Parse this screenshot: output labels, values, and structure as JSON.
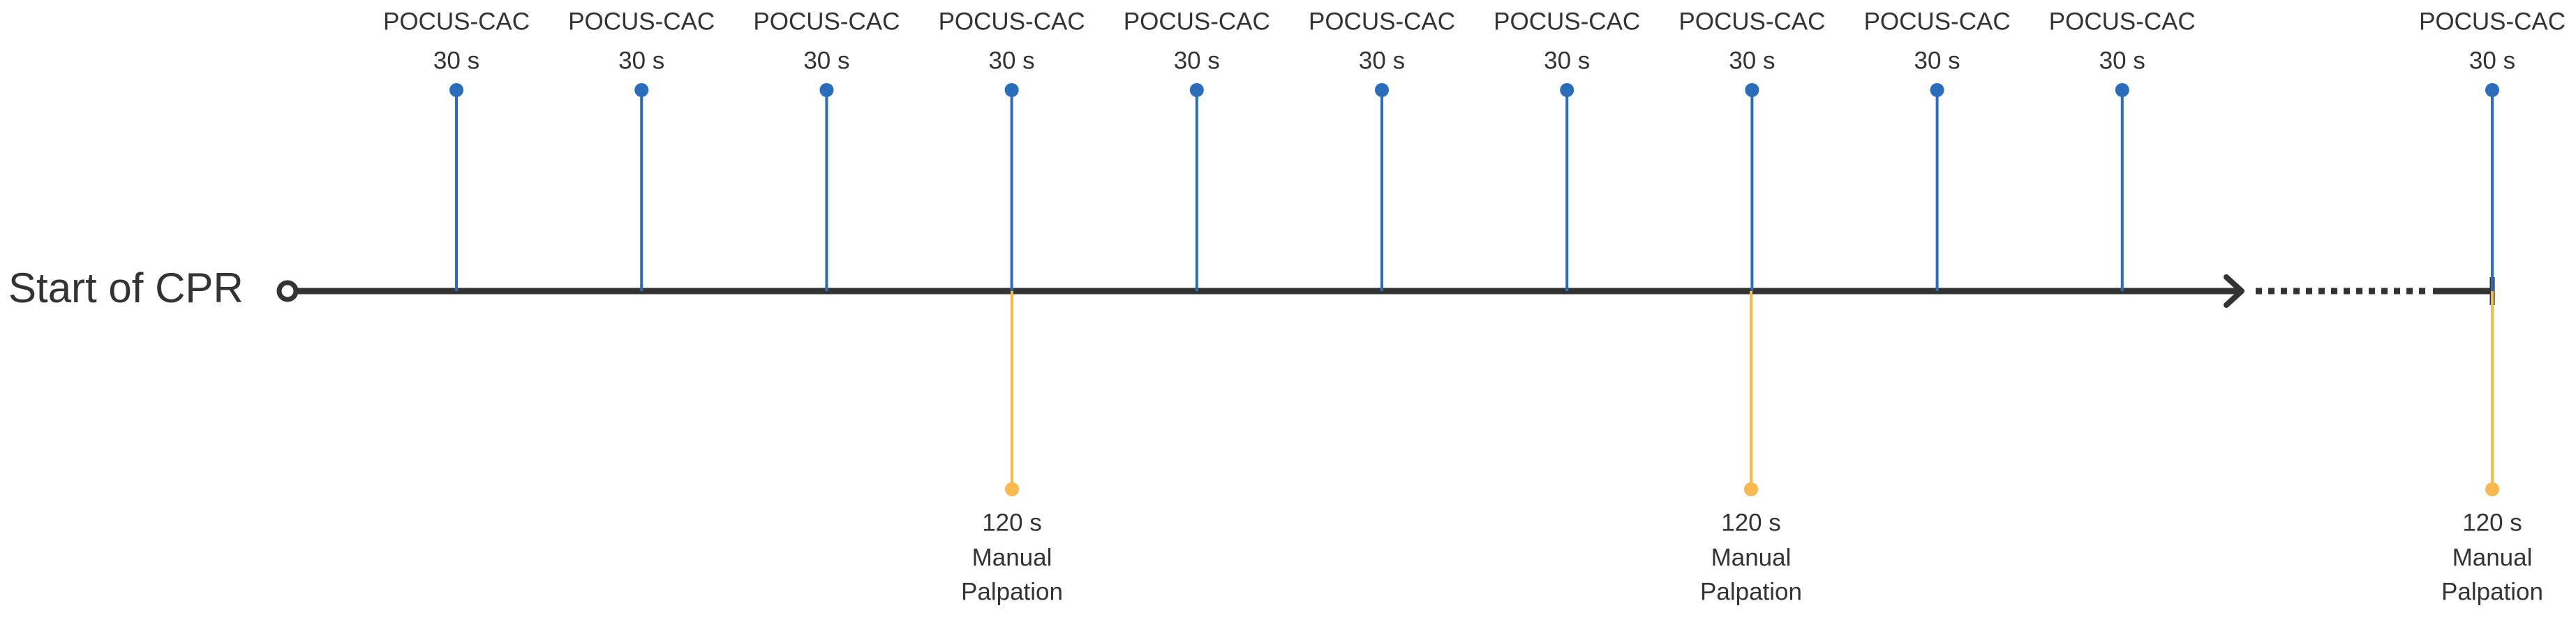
{
  "start_label": "Start of CPR",
  "top_events": [
    {
      "label": "POCUS-CAC",
      "time": "30 s"
    },
    {
      "label": "POCUS-CAC",
      "time": "30 s"
    },
    {
      "label": "POCUS-CAC",
      "time": "30 s"
    },
    {
      "label": "POCUS-CAC",
      "time": "30 s"
    },
    {
      "label": "POCUS-CAC",
      "time": "30 s"
    },
    {
      "label": "POCUS-CAC",
      "time": "30 s"
    },
    {
      "label": "POCUS-CAC",
      "time": "30 s"
    },
    {
      "label": "POCUS-CAC",
      "time": "30 s"
    },
    {
      "label": "POCUS-CAC",
      "time": "30 s"
    },
    {
      "label": "POCUS-CAC",
      "time": "30 s"
    },
    {
      "label": "POCUS-CAC",
      "time": "30 s"
    }
  ],
  "bottom_events": [
    {
      "time": "120 s",
      "label_lines": [
        "Manual",
        "Palpation"
      ]
    },
    {
      "time": "120 s",
      "label_lines": [
        "Manual",
        "Palpation"
      ]
    },
    {
      "time": "120 s",
      "label_lines": [
        "Manual",
        "Palpation"
      ]
    }
  ]
}
